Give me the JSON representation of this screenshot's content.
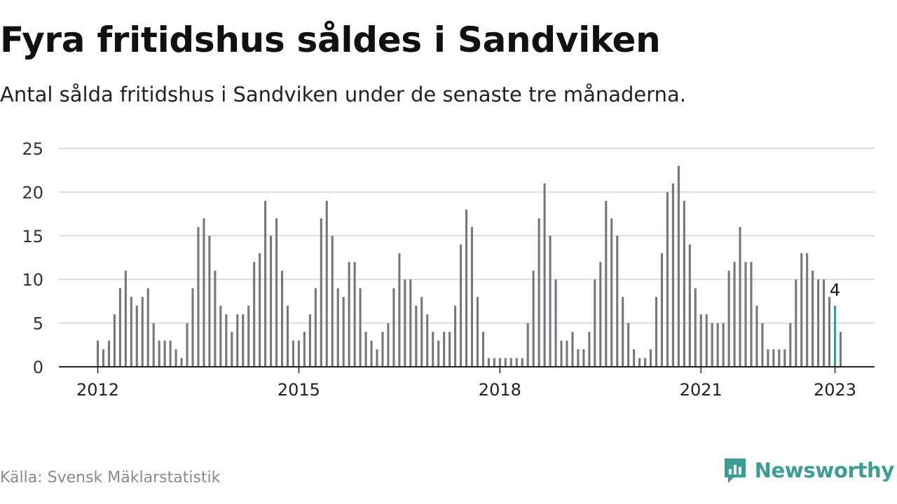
{
  "title": "Fyra fritidshus såldes i Sandviken",
  "subtitle": "Antal sålda fritidshus i Sandviken under de senaste tre månaderna.",
  "source": "Källa: Svensk Mäklarstatistik",
  "brand": {
    "name": "Newsworthy",
    "icon": "newsworthy-logo-icon"
  },
  "colors": {
    "bar": "#77767b",
    "highlight": "#2aa39b",
    "grid": "#dddddd",
    "axis": "#222222"
  },
  "chart_data": {
    "type": "bar",
    "x_start": "2012-01",
    "values": [
      3,
      2,
      3,
      6,
      9,
      11,
      8,
      7,
      8,
      9,
      5,
      3,
      3,
      3,
      2,
      1,
      5,
      9,
      16,
      17,
      15,
      11,
      7,
      6,
      4,
      6,
      6,
      7,
      12,
      13,
      19,
      15,
      17,
      11,
      7,
      3,
      3,
      4,
      6,
      9,
      17,
      19,
      15,
      9,
      8,
      12,
      12,
      9,
      4,
      3,
      2,
      4,
      5,
      9,
      13,
      10,
      10,
      7,
      8,
      6,
      4,
      3,
      4,
      4,
      7,
      14,
      18,
      16,
      8,
      4,
      1,
      1,
      1,
      1,
      1,
      1,
      1,
      5,
      11,
      17,
      21,
      15,
      10,
      3,
      3,
      4,
      2,
      2,
      4,
      10,
      12,
      19,
      17,
      15,
      8,
      5,
      2,
      1,
      1,
      2,
      8,
      13,
      20,
      21,
      23,
      19,
      14,
      9,
      6,
      6,
      5,
      5,
      5,
      11,
      12,
      16,
      12,
      12,
      7,
      5,
      2,
      2,
      2,
      2,
      5,
      10,
      13,
      13,
      11,
      10,
      10,
      8,
      7,
      4
    ],
    "x_ticks": [
      {
        "label": "2012",
        "index": 0
      },
      {
        "label": "2015",
        "index": 36
      },
      {
        "label": "2018",
        "index": 72
      },
      {
        "label": "2021",
        "index": 108
      },
      {
        "label": "2023",
        "index": 132
      }
    ],
    "y_ticks": [
      0,
      5,
      10,
      15,
      20,
      25
    ],
    "ylim": [
      0,
      25
    ],
    "highlight_index": 132,
    "last_value_label": "4",
    "grid": true,
    "legend": "none"
  }
}
